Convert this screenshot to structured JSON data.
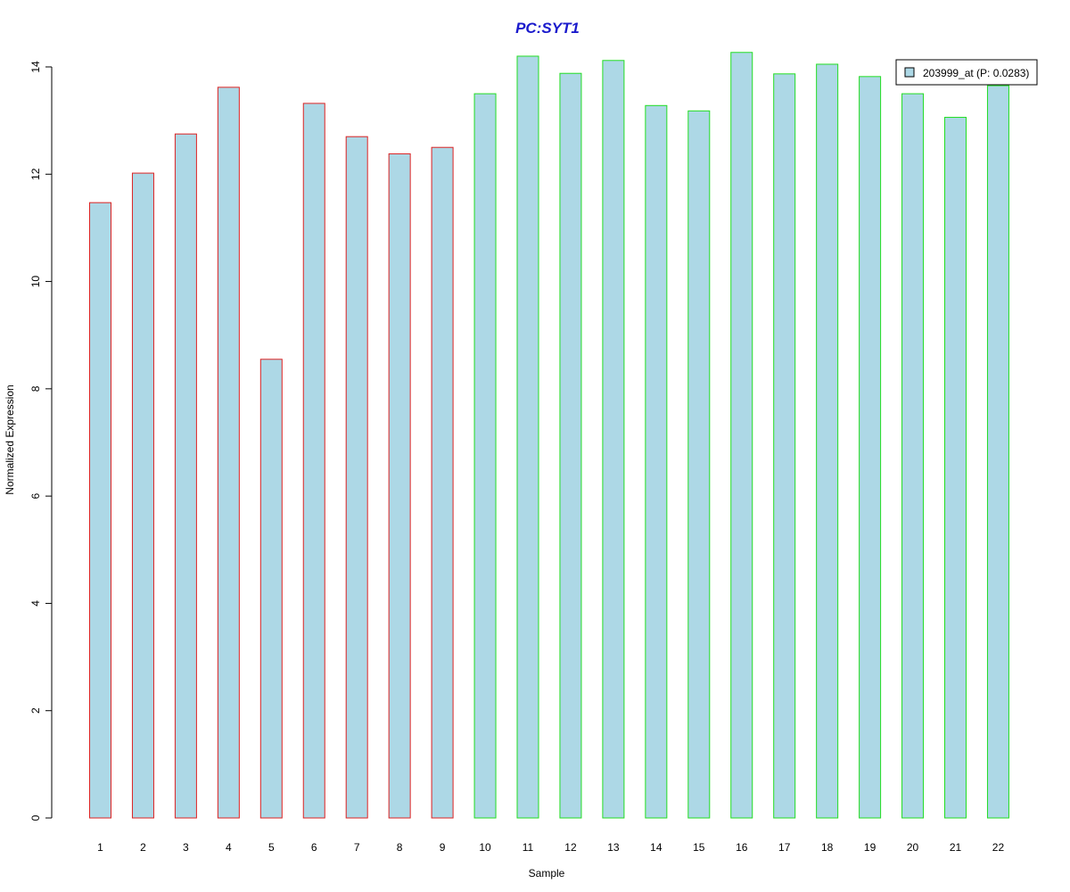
{
  "chart_data": {
    "type": "bar",
    "title": "PC:SYT1",
    "xlabel": "Sample",
    "ylabel": "Normalized Expression",
    "ylim": [
      0,
      14
    ],
    "yticks": [
      0,
      2,
      4,
      6,
      8,
      10,
      12,
      14
    ],
    "grid": false,
    "legend_position": "top-right",
    "categories": [
      "1",
      "2",
      "3",
      "4",
      "5",
      "6",
      "7",
      "8",
      "9",
      "10",
      "11",
      "12",
      "13",
      "14",
      "15",
      "16",
      "17",
      "18",
      "19",
      "20",
      "21",
      "22"
    ],
    "series": [
      {
        "name": "203999_at (P: 0.0283)",
        "values": [
          11.47,
          12.02,
          12.75,
          13.62,
          8.55,
          13.32,
          12.7,
          12.38,
          12.5,
          13.5,
          14.2,
          13.88,
          14.12,
          13.28,
          13.18,
          14.27,
          13.87,
          14.05,
          13.82,
          13.5,
          13.06,
          13.65
        ]
      }
    ],
    "groups": [
      {
        "samples": [
          1,
          2,
          3,
          4,
          5,
          6,
          7,
          8,
          9
        ],
        "border_color": "#dd2222"
      },
      {
        "samples": [
          10,
          11,
          12,
          13,
          14,
          15,
          16,
          17,
          18,
          19,
          20,
          21,
          22
        ],
        "border_color": "#22dd22"
      }
    ],
    "colors": {
      "bar_fill": "#add8e6",
      "title": "#1a1acc",
      "axis": "#000000"
    }
  }
}
